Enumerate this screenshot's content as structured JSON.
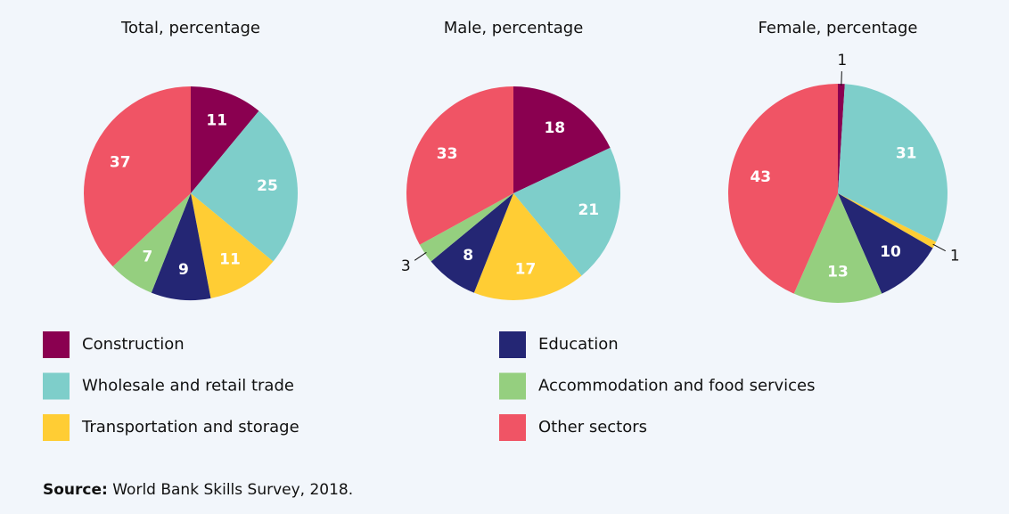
{
  "chart_data": [
    {
      "type": "pie",
      "title": "Total, percentage",
      "categories": [
        "Construction",
        "Wholesale and retail trade",
        "Transportation and storage",
        "Education",
        "Accommodation and food services",
        "Other sectors"
      ],
      "values": [
        11,
        25,
        11,
        9,
        7,
        37
      ],
      "colors": [
        "#8a0050",
        "#7ececa",
        "#ffcd34",
        "#242674",
        "#95cf7f",
        "#f05465"
      ]
    },
    {
      "type": "pie",
      "title": "Male, percentage",
      "categories": [
        "Construction",
        "Wholesale and retail trade",
        "Transportation and storage",
        "Education",
        "Accommodation and food services",
        "Other sectors"
      ],
      "values": [
        18,
        21,
        17,
        8,
        3,
        33
      ],
      "colors": [
        "#8a0050",
        "#7ececa",
        "#ffcd34",
        "#242674",
        "#95cf7f",
        "#f05465"
      ]
    },
    {
      "type": "pie",
      "title": "Female, percentage",
      "categories": [
        "Construction",
        "Wholesale and retail trade",
        "Transportation and storage",
        "Education",
        "Accommodation and food services",
        "Other sectors"
      ],
      "values": [
        1,
        31,
        1,
        10,
        13,
        43
      ],
      "colors": [
        "#8a0050",
        "#7ececa",
        "#ffcd34",
        "#242674",
        "#95cf7f",
        "#f05465"
      ]
    }
  ],
  "source": {
    "label": "Source:",
    "text": "World Bank Skills Survey, 2018."
  }
}
